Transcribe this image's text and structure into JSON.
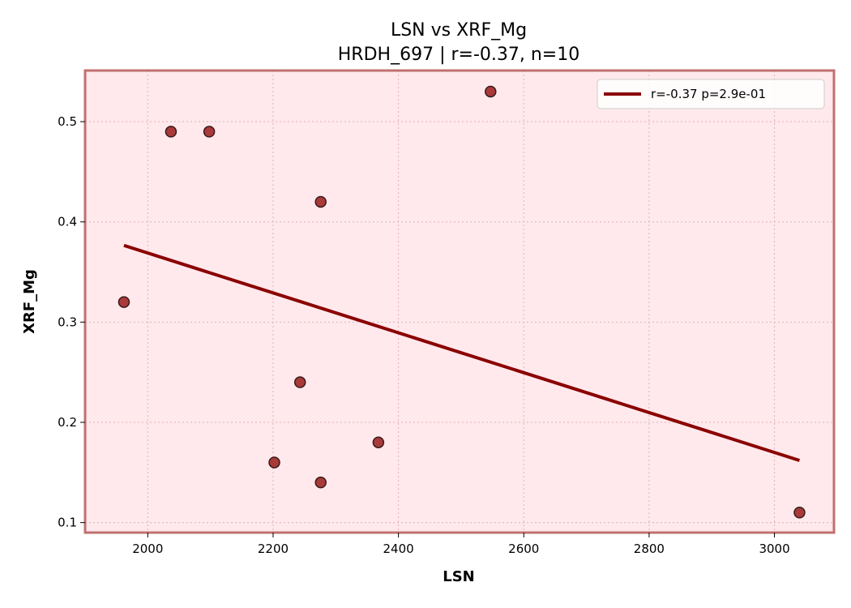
{
  "chart_data": {
    "type": "scatter",
    "title": "LSN vs XRF_Mg",
    "subtitle": "HRDH_697 | r=-0.37, n=10",
    "xlabel": "LSN",
    "ylabel": "XRF_Mg",
    "xlim": [
      1900,
      3095
    ],
    "ylim": [
      0.09,
      0.551
    ],
    "xticks": [
      2000,
      2200,
      2400,
      2600,
      2800,
      3000
    ],
    "yticks": [
      0.1,
      0.2,
      0.3,
      0.4,
      0.5
    ],
    "xtick_labels": [
      "2000",
      "2200",
      "2400",
      "2600",
      "2800",
      "3000"
    ],
    "ytick_labels": [
      "0.1",
      "0.2",
      "0.3",
      "0.4",
      "0.5"
    ],
    "grid": true,
    "legend_position": "top-right",
    "points": [
      {
        "x": 1962,
        "y": 0.32
      },
      {
        "x": 2037,
        "y": 0.49
      },
      {
        "x": 2098,
        "y": 0.49
      },
      {
        "x": 2202,
        "y": 0.16
      },
      {
        "x": 2243,
        "y": 0.24
      },
      {
        "x": 2276,
        "y": 0.42
      },
      {
        "x": 2276,
        "y": 0.14
      },
      {
        "x": 2368,
        "y": 0.18
      },
      {
        "x": 2547,
        "y": 0.53
      },
      {
        "x": 3040,
        "y": 0.11
      }
    ],
    "fit_line": {
      "label": "r=-0.37  p=2.9e-01",
      "x": [
        1962,
        3040
      ],
      "y": [
        0.3765,
        0.162
      ]
    },
    "colors": {
      "background": "#ffe9ec",
      "border": "#c07070",
      "point_fill": "#a83a3a",
      "point_edge": "#3a1a1a",
      "line": "#8b0000",
      "grid": "#e0b0b8"
    }
  }
}
